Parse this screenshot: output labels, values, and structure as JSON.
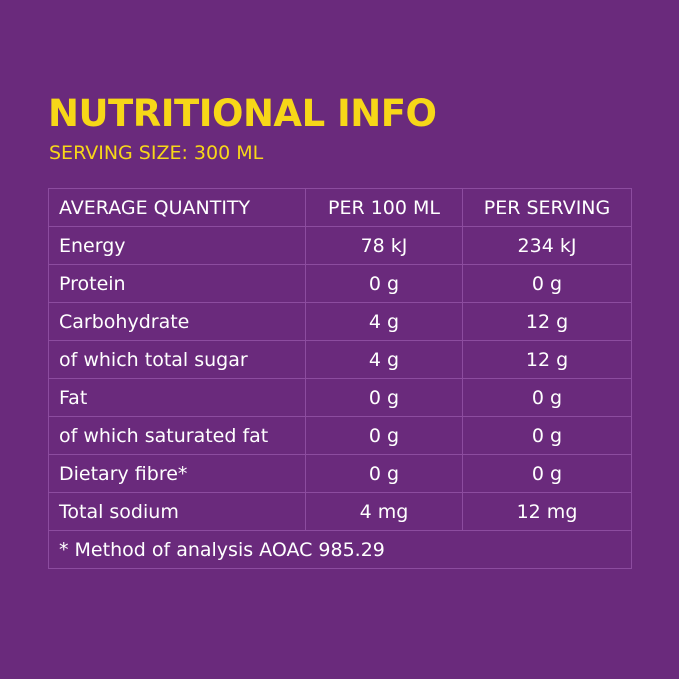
{
  "title": "NUTRITIONAL INFO",
  "serving_size": "SERVING SIZE: 300 ML",
  "table": {
    "headers": [
      "AVERAGE QUANTITY",
      "PER 100 ML",
      "PER SERVING"
    ],
    "rows": [
      {
        "name": "Energy",
        "per100": "78 kJ",
        "perServing": "234 kJ"
      },
      {
        "name": "Protein",
        "per100": "0 g",
        "perServing": "0 g"
      },
      {
        "name": "Carbohydrate",
        "per100": "4 g",
        "perServing": "12 g"
      },
      {
        "name": "of which total sugar",
        "per100": "4 g",
        "perServing": "12 g"
      },
      {
        "name": "Fat",
        "per100": "0 g",
        "perServing": "0 g"
      },
      {
        "name": "of which saturated fat",
        "per100": "0 g",
        "perServing": "0 g"
      },
      {
        "name": "Dietary fibre*",
        "per100": "0 g",
        "perServing": "0 g"
      },
      {
        "name": "Total sodium",
        "per100": "4 mg",
        "perServing": "12 mg"
      }
    ],
    "footnote": "* Method of analysis AOAC 985.29"
  },
  "colors": {
    "background": "#6a2a7c",
    "accent": "#f7d718",
    "grid": "#8c4c9f",
    "text": "#ffffff"
  }
}
